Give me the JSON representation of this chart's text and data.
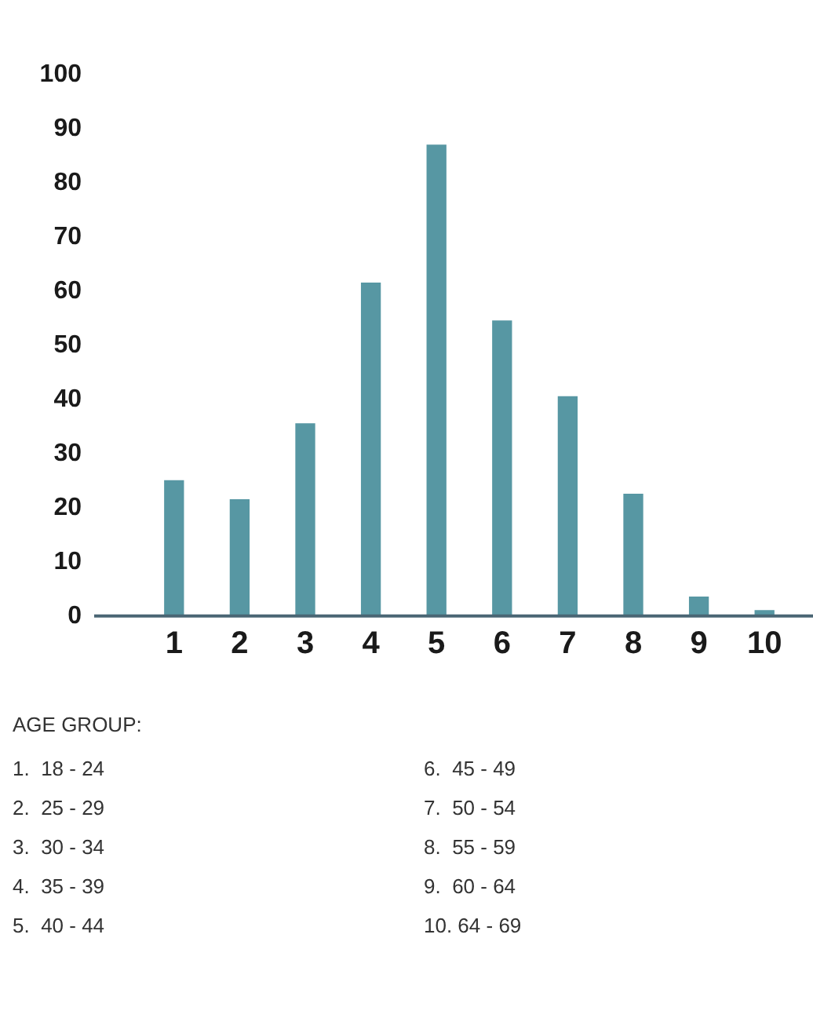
{
  "chart_data": {
    "type": "bar",
    "categories": [
      "1",
      "2",
      "3",
      "4",
      "5",
      "6",
      "7",
      "8",
      "9",
      "10"
    ],
    "values": [
      25,
      21.5,
      35.5,
      61.5,
      87,
      54.5,
      40.5,
      22.5,
      3.5,
      1
    ],
    "color": "#5797a3",
    "ylim": [
      0,
      100
    ],
    "yticks": [
      0,
      10,
      20,
      30,
      40,
      50,
      60,
      70,
      80,
      90,
      100
    ],
    "grid": false,
    "legend": false,
    "annotations": [
      "AGE GROUP:",
      "1.  18 - 24",
      "2.  25 - 29",
      "3.  30 - 34",
      "4.  35 - 39",
      "5.  40 - 44",
      "6.  45 - 49",
      "7.  50 - 54",
      "8.  55 - 59",
      "9.  60 - 64",
      "10. 64 - 69"
    ]
  }
}
